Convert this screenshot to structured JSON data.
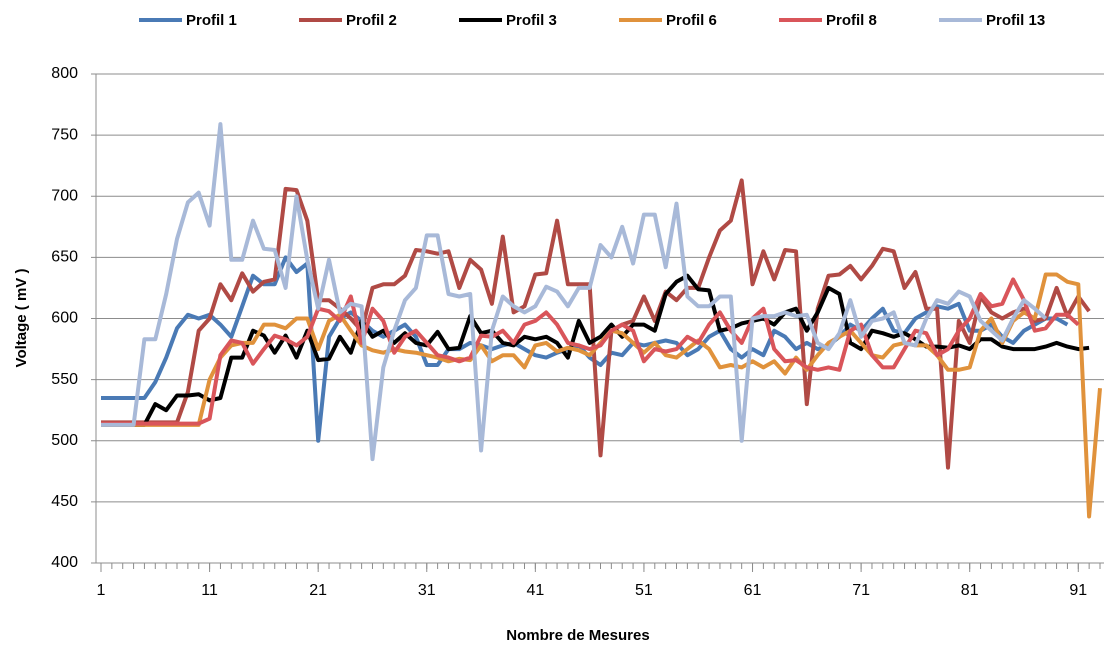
{
  "chart_data": {
    "type": "line",
    "x_label": "Nombre de Mesures",
    "y_label": "Voltage ( mV )",
    "x": [
      1,
      2,
      3,
      4,
      5,
      6,
      7,
      8,
      9,
      10,
      11,
      12,
      13,
      14,
      15,
      16,
      17,
      18,
      19,
      20,
      21,
      22,
      23,
      24,
      25,
      26,
      27,
      28,
      29,
      30,
      31,
      32,
      33,
      34,
      35,
      36,
      37,
      38,
      39,
      40,
      41,
      42,
      43,
      44,
      45,
      46,
      47,
      48,
      49,
      50,
      51,
      52,
      53,
      54,
      55,
      56,
      57,
      58,
      59,
      60,
      61,
      62,
      63,
      64,
      65,
      66,
      67,
      68,
      69,
      70,
      71,
      72,
      73,
      74,
      75,
      76,
      77,
      78,
      79,
      80,
      81,
      82,
      83,
      84,
      85,
      86,
      87,
      88,
      89,
      90,
      91,
      92,
      93
    ],
    "xlim": [
      1,
      93
    ],
    "xticks": [
      1,
      11,
      21,
      31,
      41,
      51,
      61,
      71,
      81,
      91
    ],
    "ylim": [
      400,
      800
    ],
    "yticks": [
      400,
      450,
      500,
      550,
      600,
      650,
      700,
      750,
      800
    ],
    "grid": true,
    "legend": "top",
    "series": [
      {
        "name": "Profil 1",
        "color": "#4a7ab5",
        "values": [
          535,
          535,
          535,
          535,
          535,
          548,
          568,
          592,
          603,
          600,
          603,
          595,
          585,
          610,
          635,
          628,
          628,
          650,
          638,
          645,
          500,
          585,
          600,
          605,
          598,
          590,
          585,
          590,
          595,
          585,
          562,
          562,
          575,
          575,
          580,
          578,
          575,
          578,
          580,
          575,
          570,
          568,
          572,
          575,
          578,
          568,
          562,
          572,
          570,
          580,
          578,
          580,
          582,
          580,
          570,
          575,
          585,
          590,
          575,
          568,
          575,
          570,
          590,
          585,
          575,
          580,
          575,
          578,
          585,
          595,
          590,
          600,
          608,
          590,
          588,
          600,
          605,
          610,
          608,
          612,
          590,
          590,
          595,
          585,
          580,
          590,
          595,
          600,
          600,
          595,
          null,
          null,
          null
        ]
      },
      {
        "name": "Profil 2",
        "color": "#b04a45",
        "values": [
          515,
          515,
          515,
          515,
          515,
          515,
          515,
          515,
          540,
          590,
          600,
          628,
          615,
          637,
          622,
          630,
          632,
          706,
          705,
          680,
          615,
          615,
          608,
          600,
          590,
          625,
          628,
          628,
          635,
          656,
          655,
          653,
          655,
          625,
          648,
          640,
          612,
          667,
          605,
          610,
          636,
          637,
          680,
          628,
          628,
          628,
          488,
          590,
          595,
          598,
          618,
          598,
          622,
          615,
          625,
          625,
          650,
          672,
          680,
          713,
          628,
          655,
          632,
          656,
          655,
          530,
          608,
          635,
          636,
          643,
          632,
          643,
          657,
          655,
          625,
          638,
          608,
          608,
          478,
          598,
          580,
          618,
          605,
          600,
          605,
          608,
          598,
          600,
          625,
          602,
          618,
          606,
          null
        ]
      },
      {
        "name": "Profil 3",
        "color": "#000000",
        "values": [
          513,
          513,
          513,
          513,
          513,
          530,
          525,
          537,
          537,
          538,
          533,
          535,
          568,
          568,
          590,
          586,
          572,
          586,
          568,
          590,
          566,
          567,
          585,
          572,
          598,
          585,
          590,
          580,
          588,
          580,
          578,
          589,
          575,
          576,
          602,
          588,
          590,
          580,
          578,
          585,
          583,
          585,
          580,
          568,
          598,
          580,
          585,
          595,
          585,
          595,
          595,
          590,
          620,
          630,
          635,
          624,
          623,
          590,
          592,
          596,
          598,
          600,
          595,
          605,
          608,
          590,
          605,
          625,
          620,
          580,
          575,
          590,
          588,
          585,
          588,
          583,
          577,
          577,
          576,
          578,
          575,
          583,
          583,
          577,
          575,
          575,
          575,
          577,
          580,
          577,
          575,
          576,
          null
        ]
      },
      {
        "name": "Profil 6",
        "color": "#e0923c",
        "values": [
          513,
          513,
          513,
          513,
          513,
          513,
          513,
          513,
          513,
          513,
          550,
          568,
          578,
          580,
          580,
          595,
          595,
          592,
          600,
          600,
          575,
          598,
          603,
          590,
          578,
          574,
          572,
          575,
          573,
          572,
          570,
          568,
          565,
          567,
          566,
          578,
          565,
          570,
          570,
          560,
          578,
          580,
          573,
          576,
          574,
          570,
          580,
          590,
          588,
          580,
          572,
          580,
          570,
          568,
          575,
          582,
          575,
          560,
          562,
          560,
          565,
          560,
          565,
          555,
          568,
          558,
          570,
          580,
          585,
          590,
          580,
          570,
          568,
          578,
          580,
          578,
          578,
          570,
          558,
          558,
          560,
          590,
          600,
          580,
          598,
          605,
          600,
          636,
          636,
          630,
          628,
          438,
          543
        ]
      },
      {
        "name": "Profil 8",
        "color": "#d9555a",
        "values": [
          514,
          514,
          514,
          514,
          514,
          514,
          514,
          514,
          514,
          514,
          518,
          570,
          582,
          580,
          563,
          575,
          586,
          583,
          578,
          585,
          608,
          606,
          598,
          618,
          580,
          608,
          598,
          572,
          585,
          590,
          580,
          570,
          568,
          565,
          568,
          586,
          585,
          590,
          580,
          595,
          598,
          605,
          595,
          580,
          578,
          575,
          578,
          590,
          595,
          590,
          565,
          575,
          573,
          575,
          585,
          580,
          595,
          605,
          590,
          580,
          600,
          608,
          575,
          565,
          566,
          560,
          558,
          560,
          558,
          590,
          595,
          570,
          560,
          560,
          575,
          590,
          588,
          570,
          575,
          590,
          600,
          620,
          610,
          612,
          632,
          615,
          590,
          592,
          603,
          603,
          595,
          null,
          null
        ]
      },
      {
        "name": "Profil 13",
        "color": "#a8b9d8",
        "values": [
          513,
          513,
          513,
          513,
          583,
          583,
          620,
          665,
          695,
          703,
          676,
          759,
          648,
          648,
          680,
          657,
          656,
          625,
          700,
          648,
          608,
          648,
          605,
          612,
          610,
          485,
          560,
          590,
          615,
          625,
          668,
          668,
          620,
          618,
          620,
          492,
          590,
          618,
          610,
          605,
          610,
          626,
          622,
          610,
          625,
          625,
          660,
          650,
          675,
          645,
          685,
          685,
          642,
          694,
          618,
          610,
          610,
          618,
          618,
          500,
          600,
          602,
          602,
          605,
          602,
          603,
          580,
          575,
          588,
          615,
          585,
          598,
          600,
          605,
          580,
          578,
          600,
          615,
          612,
          622,
          618,
          598,
          590,
          582,
          600,
          615,
          608,
          600,
          null,
          null,
          null,
          null,
          null
        ]
      }
    ]
  }
}
